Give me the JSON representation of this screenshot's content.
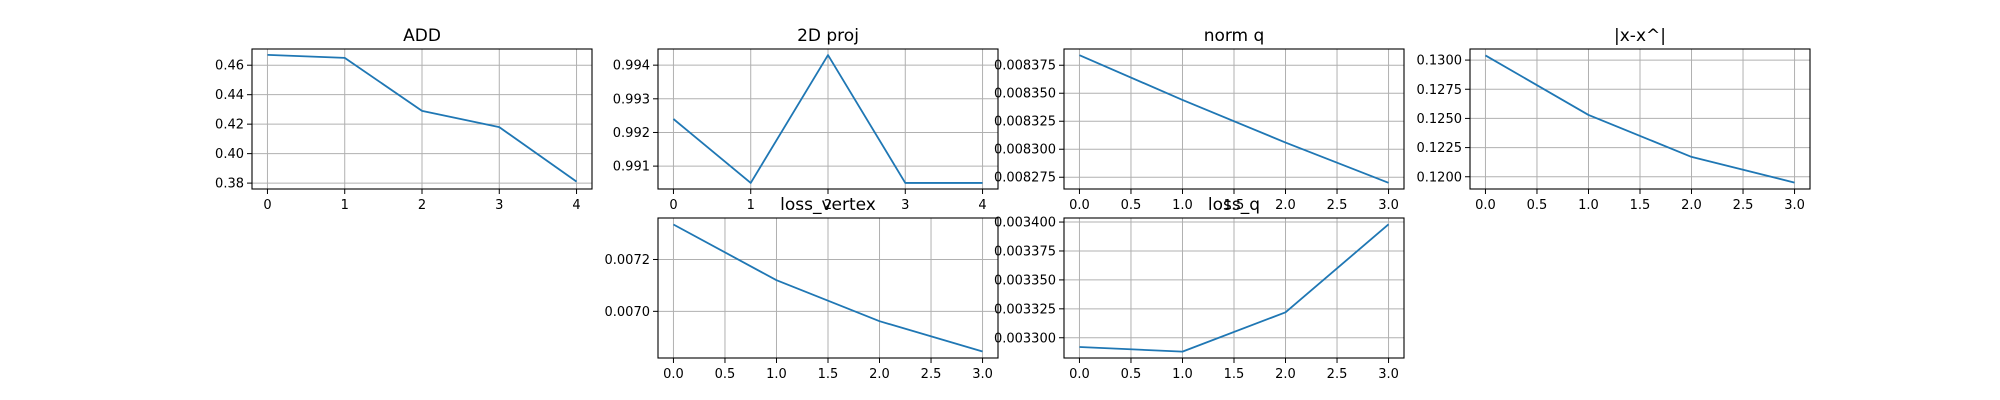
{
  "figure": {
    "line_color": "#1f77b4",
    "grid": true
  },
  "chart_data": [
    {
      "type": "line",
      "title": "ADD",
      "x": [
        0,
        1,
        2,
        3,
        4
      ],
      "y": [
        0.467,
        0.465,
        0.429,
        0.418,
        0.381
      ],
      "xlim": [
        -0.2,
        4.2
      ],
      "ylim": [
        0.376,
        0.471
      ],
      "xticks": [
        0,
        1,
        2,
        3,
        4
      ],
      "yticks": [
        0.38,
        0.4,
        0.42,
        0.44,
        0.46
      ],
      "xtick_labels": [
        "0",
        "1",
        "2",
        "3",
        "4"
      ],
      "ytick_labels": [
        "0.38",
        "0.40",
        "0.42",
        "0.44",
        "0.46"
      ]
    },
    {
      "type": "line",
      "title": "2D proj",
      "x": [
        0,
        1,
        2,
        3,
        4
      ],
      "y": [
        0.9924,
        0.9905,
        0.9943,
        0.9905,
        0.9905
      ],
      "xlim": [
        -0.2,
        4.2
      ],
      "ylim": [
        0.99032,
        0.99448
      ],
      "xticks": [
        0,
        1,
        2,
        3,
        4
      ],
      "yticks": [
        0.991,
        0.992,
        0.993,
        0.994
      ],
      "xtick_labels": [
        "0",
        "1",
        "2",
        "3",
        "4"
      ],
      "ytick_labels": [
        "0.991",
        "0.992",
        "0.993",
        "0.994"
      ]
    },
    {
      "type": "line",
      "title": "norm q",
      "x": [
        0,
        1,
        2,
        3
      ],
      "y": [
        0.008384,
        0.008344,
        0.008306,
        0.00827
      ],
      "xlim": [
        -0.15,
        3.15
      ],
      "ylim": [
        0.0082645,
        0.0083895
      ],
      "xticks": [
        0,
        0.5,
        1,
        1.5,
        2,
        2.5,
        3
      ],
      "yticks": [
        0.008275,
        0.0083,
        0.008325,
        0.00835,
        0.008375
      ],
      "xtick_labels": [
        "0.0",
        "0.5",
        "1.0",
        "1.5",
        "2.0",
        "2.5",
        "3.0"
      ],
      "ytick_labels": [
        "0.008275",
        "0.008300",
        "0.008325",
        "0.008350",
        "0.008375"
      ]
    },
    {
      "type": "line",
      "title": "|x-x^|",
      "x": [
        0,
        1,
        2,
        3
      ],
      "y": [
        0.1304,
        0.1253,
        0.1217,
        0.1195
      ],
      "xlim": [
        -0.15,
        3.15
      ],
      "ylim": [
        0.11895,
        0.13095
      ],
      "xticks": [
        0,
        0.5,
        1,
        1.5,
        2,
        2.5,
        3
      ],
      "yticks": [
        0.12,
        0.1225,
        0.125,
        0.1275,
        0.13
      ],
      "xtick_labels": [
        "0.0",
        "0.5",
        "1.0",
        "1.5",
        "2.0",
        "2.5",
        "3.0"
      ],
      "ytick_labels": [
        "0.1200",
        "0.1225",
        "0.1250",
        "0.1275",
        "0.1300"
      ]
    },
    {
      "type": "line",
      "title": "loss_vertex",
      "x": [
        0,
        1,
        2,
        3
      ],
      "y": [
        0.007335,
        0.00712,
        0.006962,
        0.006845
      ],
      "xlim": [
        -0.15,
        3.15
      ],
      "ylim": [
        0.00682,
        0.00736
      ],
      "xticks": [
        0,
        0.5,
        1,
        1.5,
        2,
        2.5,
        3
      ],
      "yticks": [
        0.007,
        0.0072
      ],
      "xtick_labels": [
        "0.0",
        "0.5",
        "1.0",
        "1.5",
        "2.0",
        "2.5",
        "3.0"
      ],
      "ytick_labels": [
        "0.0070",
        "0.0072"
      ]
    },
    {
      "type": "line",
      "title": "loss_q",
      "x": [
        0,
        1,
        2,
        3
      ],
      "y": [
        0.003292,
        0.003288,
        0.003322,
        0.003398
      ],
      "xlim": [
        -0.15,
        3.15
      ],
      "ylim": [
        0.0032825,
        0.0034035
      ],
      "xticks": [
        0,
        0.5,
        1,
        1.5,
        2,
        2.5,
        3
      ],
      "yticks": [
        0.0033,
        0.003325,
        0.00335,
        0.003375,
        0.0034
      ],
      "xtick_labels": [
        "0.0",
        "0.5",
        "1.0",
        "1.5",
        "2.0",
        "2.5",
        "3.0"
      ],
      "ytick_labels": [
        "0.003300",
        "0.003325",
        "0.003350",
        "0.003375",
        "0.003400"
      ]
    }
  ]
}
